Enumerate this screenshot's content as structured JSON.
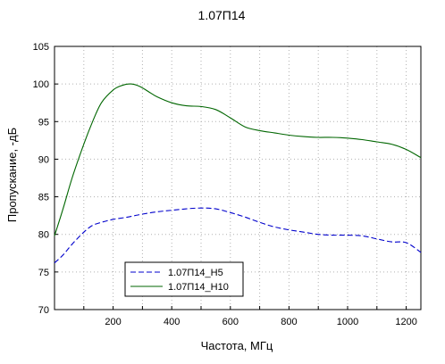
{
  "chart_data": {
    "type": "line",
    "title": "1.07П14",
    "xlabel": "Частота, МГц",
    "ylabel": "Пропускание, -дБ",
    "xlim": [
      0,
      1250
    ],
    "ylim": [
      70,
      105
    ],
    "xticks": [
      200,
      400,
      600,
      800,
      1000,
      1200
    ],
    "yticks": [
      70,
      75,
      80,
      85,
      90,
      95,
      100,
      105
    ],
    "grid": true,
    "legend_position": "bottom-left",
    "series": [
      {
        "name": "1.07П14_H5",
        "color": "#0000cc",
        "line_style": "dashed",
        "x": [
          0,
          30,
          60,
          100,
          130,
          160,
          200,
          250,
          300,
          350,
          400,
          450,
          500,
          550,
          600,
          650,
          700,
          750,
          800,
          850,
          900,
          950,
          1000,
          1050,
          1100,
          1150,
          1200,
          1250
        ],
        "y": [
          76.2,
          77.3,
          78.7,
          80.3,
          81.2,
          81.6,
          82.0,
          82.3,
          82.7,
          83.0,
          83.2,
          83.4,
          83.5,
          83.4,
          82.9,
          82.3,
          81.6,
          81.0,
          80.6,
          80.3,
          80.0,
          79.9,
          79.9,
          79.8,
          79.4,
          79.0,
          78.9,
          77.6
        ]
      },
      {
        "name": "1.07П14_H10",
        "color": "#006600",
        "line_style": "solid",
        "x": [
          0,
          30,
          60,
          100,
          130,
          160,
          200,
          230,
          260,
          290,
          320,
          350,
          400,
          450,
          500,
          550,
          600,
          650,
          700,
          750,
          800,
          850,
          900,
          950,
          1000,
          1050,
          1100,
          1150,
          1200,
          1250
        ],
        "y": [
          79.8,
          83.5,
          87.5,
          92.0,
          95.0,
          97.5,
          99.2,
          99.8,
          100.0,
          99.7,
          99.0,
          98.3,
          97.5,
          97.1,
          97.0,
          96.6,
          95.5,
          94.3,
          93.8,
          93.5,
          93.2,
          93.0,
          92.9,
          92.9,
          92.8,
          92.6,
          92.3,
          92.0,
          91.3,
          90.2
        ]
      }
    ]
  }
}
